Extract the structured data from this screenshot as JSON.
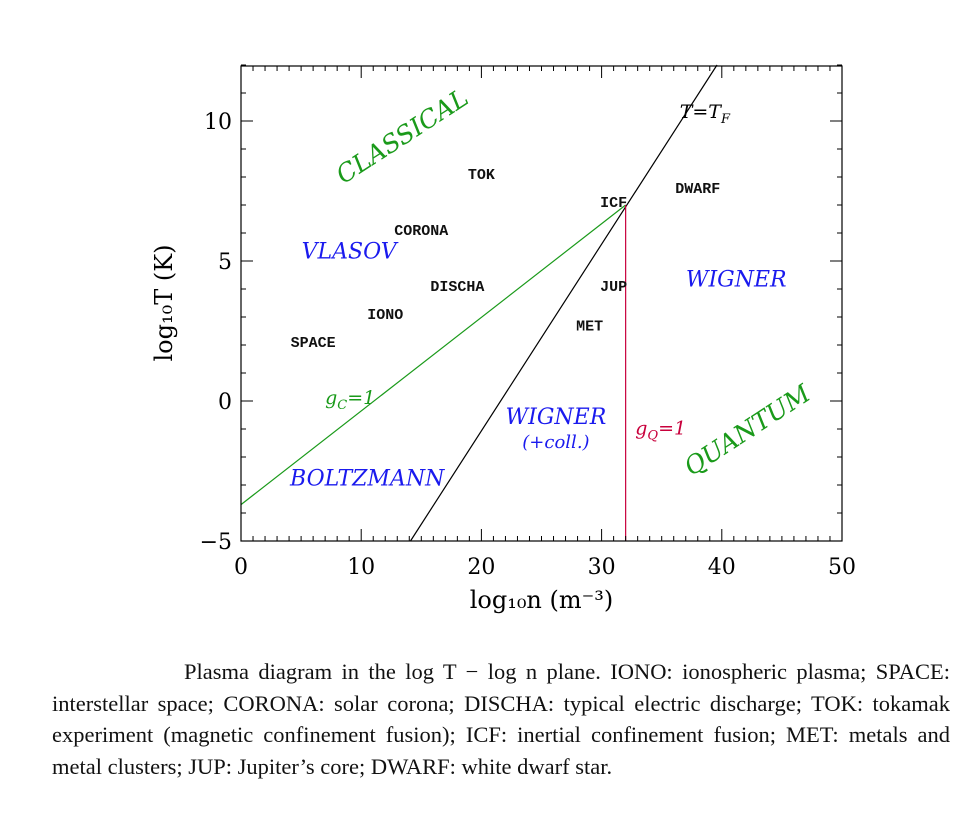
{
  "chart_data": {
    "type": "scatter",
    "title": "",
    "xlabel": "log₁₀n (m⁻³)",
    "ylabel": "log₁₀T (K)",
    "xlim": [
      0,
      50
    ],
    "ylim": [
      -5,
      12
    ],
    "xticks": [
      "0",
      "10",
      "20",
      "30",
      "40",
      "50"
    ],
    "yticks": [
      "−5",
      "0",
      "5",
      "10"
    ],
    "grid": false,
    "points": [
      {
        "label": "TOK",
        "x": 20,
        "y": 8.1
      },
      {
        "label": "ICF",
        "x": 31,
        "y": 7.1
      },
      {
        "label": "DWARF",
        "x": 38,
        "y": 7.6
      },
      {
        "label": "CORONA",
        "x": 15,
        "y": 6.1
      },
      {
        "label": "DISCHA",
        "x": 18,
        "y": 4.1
      },
      {
        "label": "JUP",
        "x": 31,
        "y": 4.1
      },
      {
        "label": "IONO",
        "x": 12,
        "y": 3.1
      },
      {
        "label": "MET",
        "x": 29,
        "y": 2.7
      },
      {
        "label": "SPACE",
        "x": 6,
        "y": 2.1
      }
    ],
    "lines": [
      {
        "label": "T=T_F",
        "color": "#000000",
        "x": [
          14.1,
          39.6
        ],
        "y": [
          -5,
          12
        ]
      },
      {
        "label": "g_C=1",
        "color": "#1a9a1a",
        "x": [
          0,
          32
        ],
        "y": [
          -3.7,
          7
        ]
      },
      {
        "label": "g_Q=1",
        "color": "#c8003c",
        "x": [
          32,
          32
        ],
        "y": [
          -5,
          7
        ]
      }
    ],
    "regions": [
      {
        "label": "CLASSICAL",
        "color": "#1a9a1a",
        "x": 13.5,
        "y": 9.4,
        "angle": -33,
        "size": 25
      },
      {
        "label": "VLASOV",
        "color": "#1a1aee",
        "x": 9,
        "y": 5.3,
        "angle": 0,
        "size": 22
      },
      {
        "label": "BOLTZMANN",
        "color": "#1a1aee",
        "x": 10.5,
        "y": -2.8,
        "angle": 0,
        "size": 22
      },
      {
        "label": "WIGNER",
        "color": "#1a1aee",
        "x": 26.2,
        "y": -0.6,
        "angle": 0,
        "size": 22
      },
      {
        "label": "(+coll.)",
        "color": "#1a1aee",
        "x": 26.2,
        "y": -1.5,
        "angle": 0,
        "size": 18
      },
      {
        "label": "WIGNER",
        "color": "#1a1aee",
        "x": 41.2,
        "y": 4.3,
        "angle": 0,
        "size": 22
      },
      {
        "label": "QUANTUM",
        "color": "#1a9a1a",
        "x": 42.2,
        "y": -1.1,
        "angle": -33,
        "size": 25
      }
    ]
  },
  "caption": "Plasma diagram in the log T − log n plane. IONO: ionospheric plasma; SPACE: interstellar space; CORONA: solar corona; DISCHA: typical electric discharge; TOK: tokamak experiment (magnetic confinement fusion); ICF: inertial confinement fusion; MET: metals and metal clusters; JUP: Jupiter’s core; DWARF: white dwarf star."
}
